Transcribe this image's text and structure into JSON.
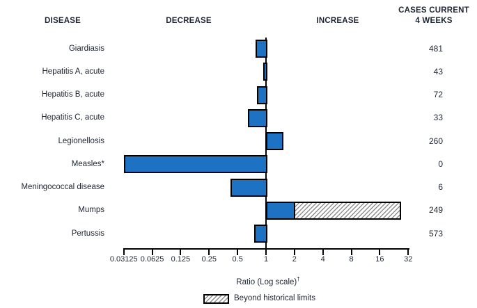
{
  "figure": {
    "headers": {
      "disease": "DISEASE",
      "decrease": "DECREASE",
      "increase": "INCREASE",
      "cases_line1": "CASES CURRENT",
      "cases_line2": "4 WEEKS"
    }
  },
  "chart_data": {
    "type": "bar",
    "orientation": "horizontal",
    "scale": "log2",
    "baseline_ratio": 1,
    "xlabel": "Ratio (Log scale)",
    "xlabel_superscript": "†",
    "xlim": [
      0.03125,
      32
    ],
    "x_ticks": [
      0.03125,
      0.0625,
      0.125,
      0.25,
      0.5,
      1,
      2,
      4,
      8,
      16,
      32
    ],
    "x_tick_labels": [
      "0.03125",
      "0.0625",
      "0.125",
      "0.25",
      "0.5",
      "1",
      "2",
      "4",
      "8",
      "16",
      "32"
    ],
    "rows": [
      {
        "disease": "Giardiasis",
        "ratio": 0.77,
        "cases": "481"
      },
      {
        "disease": "Hepatitis A, acute",
        "ratio": 0.93,
        "cases": "43"
      },
      {
        "disease": "Hepatitis B, acute",
        "ratio": 0.8,
        "cases": "72"
      },
      {
        "disease": "Hepatitis C, acute",
        "ratio": 0.64,
        "cases": "33"
      },
      {
        "disease": "Legionellosis",
        "ratio": 1.5,
        "cases": "260"
      },
      {
        "disease": "Measles*",
        "ratio": 0.03125,
        "cases": "0"
      },
      {
        "disease": "Meningococcal disease",
        "ratio": 0.42,
        "cases": "6"
      },
      {
        "disease": "Mumps",
        "ratio": 2.0,
        "beyond_ratio": 27,
        "cases": "249"
      },
      {
        "disease": "Pertussis",
        "ratio": 0.75,
        "cases": "573"
      }
    ],
    "legend": {
      "label": "Beyond historical limits",
      "pattern": "diagonal-hatch"
    }
  },
  "colors": {
    "bar_fill": "#1e72c4",
    "bar_border": "#000000",
    "axis": "#000000",
    "text": "#1d2533",
    "hatch_line": "#8f8f8f",
    "hatch_bg": "#ffffff",
    "background": "#ffffff"
  }
}
